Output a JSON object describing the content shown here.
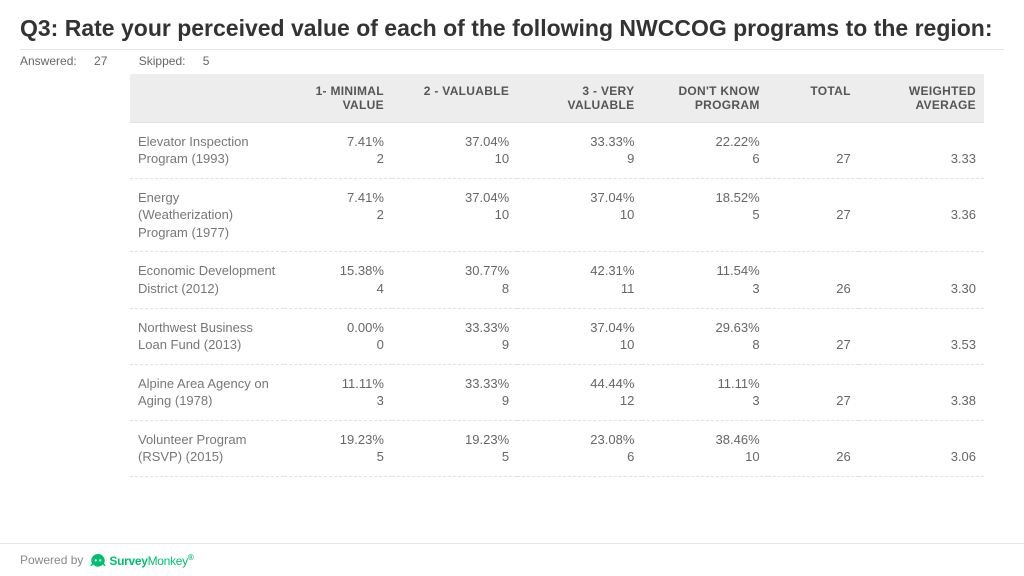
{
  "question": {
    "title": "Q3: Rate your perceived value of each of the following NWCCOG programs to the region:",
    "answered_label": "Answered:",
    "answered_count": "27",
    "skipped_label": "Skipped:",
    "skipped_count": "5"
  },
  "table": {
    "headers": {
      "blank": "",
      "c1": "1- MINIMAL VALUE",
      "c2": "2 - VALUABLE",
      "c3": "3 - VERY VALUABLE",
      "c4": "DON'T KNOW PROGRAM",
      "total": "TOTAL",
      "avg": "WEIGHTED AVERAGE"
    },
    "rows": [
      {
        "label": "Elevator Inspection Program (1993)",
        "c1_pct": "7.41%",
        "c1_n": "2",
        "c2_pct": "37.04%",
        "c2_n": "10",
        "c3_pct": "33.33%",
        "c3_n": "9",
        "c4_pct": "22.22%",
        "c4_n": "6",
        "total": "27",
        "avg": "3.33"
      },
      {
        "label": "Energy (Weatherization) Program (1977)",
        "c1_pct": "7.41%",
        "c1_n": "2",
        "c2_pct": "37.04%",
        "c2_n": "10",
        "c3_pct": "37.04%",
        "c3_n": "10",
        "c4_pct": "18.52%",
        "c4_n": "5",
        "total": "27",
        "avg": "3.36"
      },
      {
        "label": "Economic Development District (2012)",
        "c1_pct": "15.38%",
        "c1_n": "4",
        "c2_pct": "30.77%",
        "c2_n": "8",
        "c3_pct": "42.31%",
        "c3_n": "11",
        "c4_pct": "11.54%",
        "c4_n": "3",
        "total": "26",
        "avg": "3.30"
      },
      {
        "label": "Northwest Business Loan Fund (2013)",
        "c1_pct": "0.00%",
        "c1_n": "0",
        "c2_pct": "33.33%",
        "c2_n": "9",
        "c3_pct": "37.04%",
        "c3_n": "10",
        "c4_pct": "29.63%",
        "c4_n": "8",
        "total": "27",
        "avg": "3.53"
      },
      {
        "label": "Alpine Area Agency on Aging (1978)",
        "c1_pct": "11.11%",
        "c1_n": "3",
        "c2_pct": "33.33%",
        "c2_n": "9",
        "c3_pct": "44.44%",
        "c3_n": "12",
        "c4_pct": "11.11%",
        "c4_n": "3",
        "total": "27",
        "avg": "3.38"
      },
      {
        "label": "Volunteer Program (RSVP) (2015)",
        "c1_pct": "19.23%",
        "c1_n": "5",
        "c2_pct": "19.23%",
        "c2_n": "5",
        "c3_pct": "23.08%",
        "c3_n": "6",
        "c4_pct": "38.46%",
        "c4_n": "10",
        "total": "26",
        "avg": "3.06"
      }
    ]
  },
  "footer": {
    "powered_by": "Powered by",
    "brand_strong": "Survey",
    "brand_light": "Monkey",
    "brand_color": "#00bf6f"
  },
  "styling": {
    "page_bg": "#ffffff",
    "header_bg": "#ededed",
    "text_color": "#666666",
    "title_color": "#333333",
    "row_divider": "#e2e2e2",
    "font_size_title": 23,
    "font_size_body": 13,
    "font_size_meta": 12
  }
}
